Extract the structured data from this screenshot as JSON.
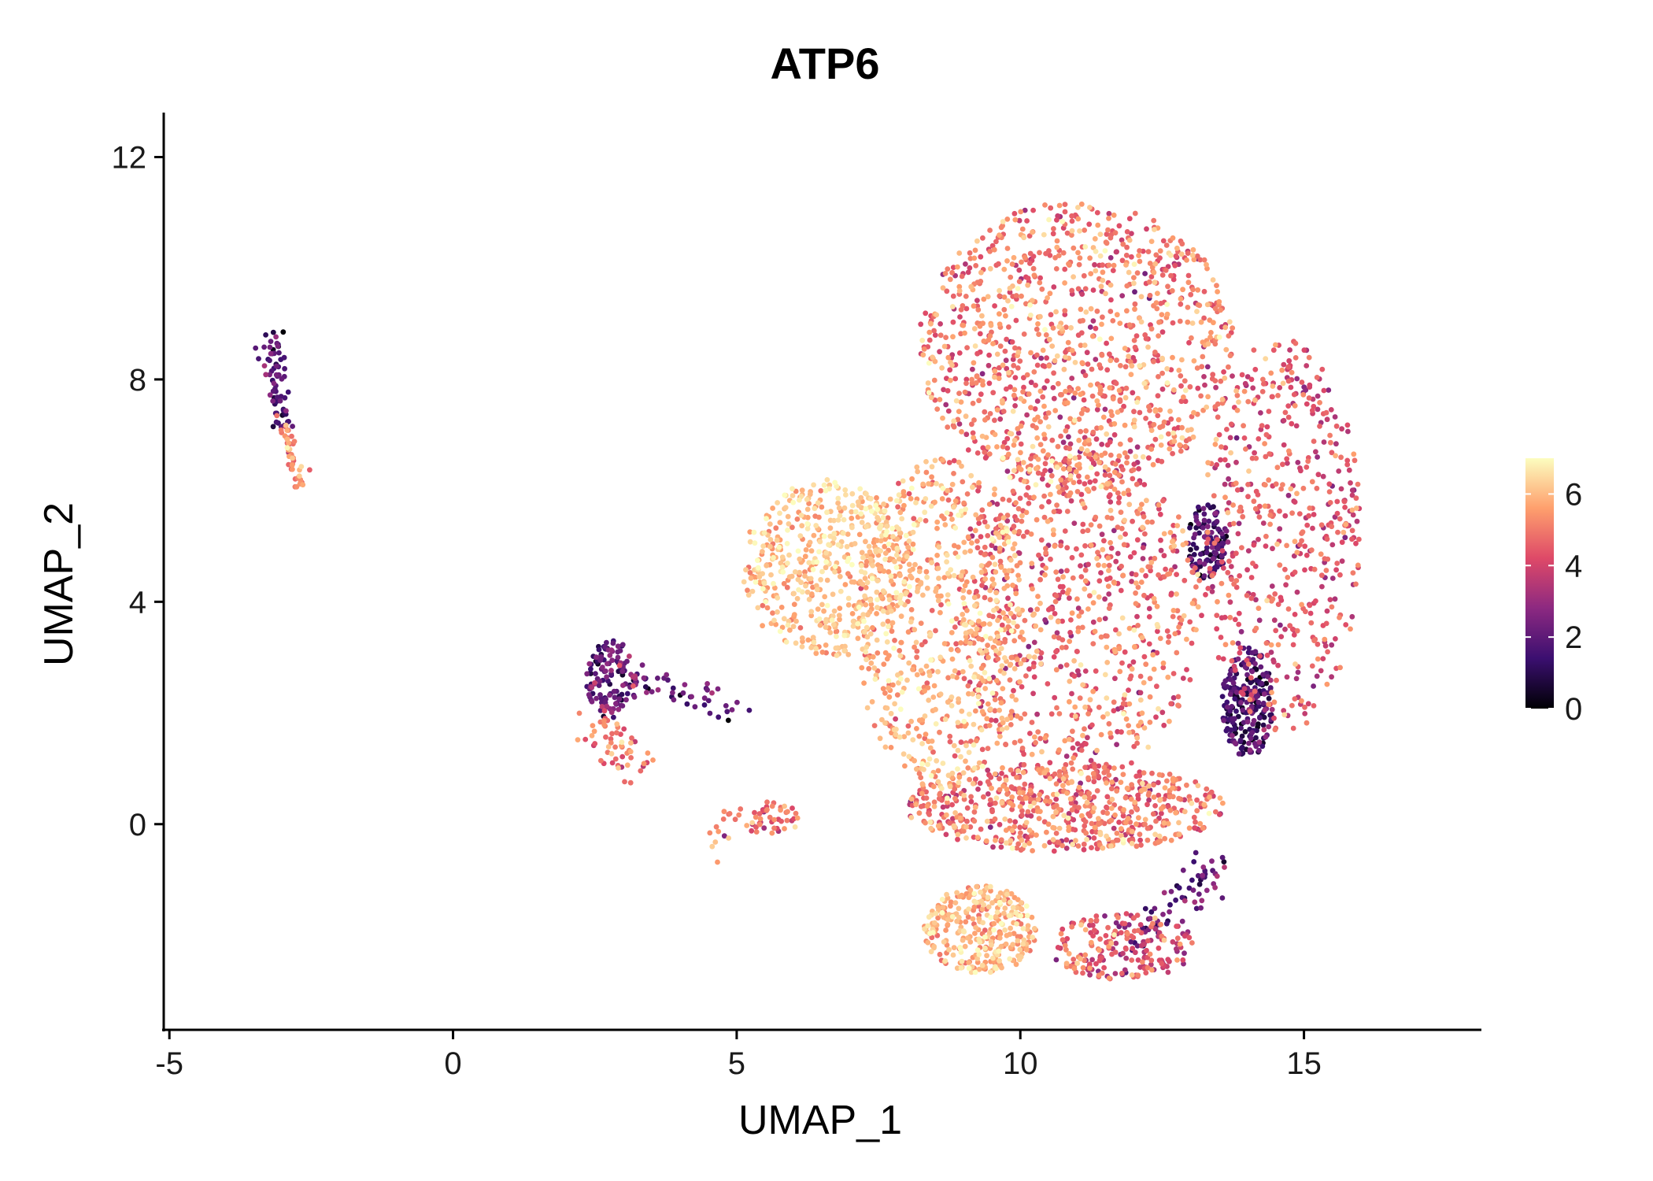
{
  "chart_data": {
    "type": "scatter",
    "title": "ATP6",
    "xlabel": "UMAP_1",
    "ylabel": "UMAP_2",
    "xlim": [
      -5.1,
      18.1
    ],
    "ylim": [
      -3.7,
      12.8
    ],
    "x_ticks": [
      -5,
      0,
      5,
      10,
      15
    ],
    "x_tick_labels": [
      "-5",
      "0",
      "5",
      "10",
      "15"
    ],
    "y_ticks": [
      0,
      4,
      8,
      12
    ],
    "y_tick_labels": [
      "0",
      "4",
      "8",
      "12"
    ],
    "grid": false,
    "legend": {
      "position": "right",
      "type": "colorbar",
      "range": [
        0,
        7
      ],
      "ticks": [
        0,
        2,
        4,
        6
      ],
      "tick_labels": [
        "0",
        "2",
        "4",
        "6"
      ]
    },
    "colormap": [
      "#000004",
      "#3b0f70",
      "#8c2981",
      "#de4968",
      "#fe9f6d",
      "#fcfdbf"
    ],
    "clusters": [
      {
        "name": "far-left strand upper",
        "shape": "line",
        "from": [
          -3.2,
          8.8
        ],
        "to": [
          -3.0,
          7.2
        ],
        "spread": 0.09,
        "n": 70,
        "value_mean": 1.8,
        "value_sd": 0.7
      },
      {
        "name": "far-left strand lower",
        "shape": "line",
        "from": [
          -3.0,
          7.2
        ],
        "to": [
          -2.7,
          6.1
        ],
        "spread": 0.07,
        "n": 45,
        "value_mean": 5.3,
        "value_sd": 0.7
      },
      {
        "name": "left island dark",
        "shape": "blob",
        "center": [
          2.8,
          2.6
        ],
        "radius": [
          0.45,
          0.7
        ],
        "n": 130,
        "value_mean": 2.0,
        "value_sd": 0.8
      },
      {
        "name": "left island tail",
        "shape": "line",
        "from": [
          2.5,
          1.8
        ],
        "to": [
          3.3,
          1.0
        ],
        "spread": 0.2,
        "n": 55,
        "value_mean": 5.0,
        "value_sd": 0.8
      },
      {
        "name": "left island strand",
        "shape": "line",
        "from": [
          3.2,
          2.6
        ],
        "to": [
          5.3,
          2.0
        ],
        "spread": 0.16,
        "n": 45,
        "value_mean": 2.2,
        "value_sd": 0.8
      },
      {
        "name": "lower small group",
        "shape": "blob",
        "center": [
          5.6,
          0.1
        ],
        "radius": [
          0.5,
          0.3
        ],
        "n": 45,
        "value_mean": 4.8,
        "value_sd": 0.8
      },
      {
        "name": "lower small tail",
        "shape": "line",
        "from": [
          4.6,
          -0.5
        ],
        "to": [
          5.2,
          0.4
        ],
        "spread": 0.12,
        "n": 15,
        "value_mean": 5.2,
        "value_sd": 0.8
      },
      {
        "name": "main cloud left lobe",
        "shape": "blob",
        "center": [
          6.6,
          4.6
        ],
        "radius": [
          1.5,
          1.6
        ],
        "n": 520,
        "value_mean": 6.1,
        "value_sd": 0.55
      },
      {
        "name": "main cloud center left",
        "shape": "blob",
        "center": [
          8.6,
          3.6
        ],
        "radius": [
          1.5,
          3.0
        ],
        "n": 650,
        "value_mean": 5.8,
        "value_sd": 0.7
      },
      {
        "name": "main cloud upper",
        "shape": "blob",
        "center": [
          11.0,
          8.6
        ],
        "radius": [
          2.8,
          2.6
        ],
        "n": 1100,
        "value_mean": 5.0,
        "value_sd": 0.85
      },
      {
        "name": "main cloud center",
        "shape": "blob",
        "center": [
          11.0,
          3.8
        ],
        "radius": [
          2.2,
          3.0
        ],
        "n": 800,
        "value_mean": 4.8,
        "value_sd": 0.85
      },
      {
        "name": "main cloud right",
        "shape": "blob",
        "center": [
          14.6,
          5.2
        ],
        "radius": [
          1.4,
          3.6
        ],
        "n": 520,
        "value_mean": 4.4,
        "value_sd": 0.8
      },
      {
        "name": "main cloud bottom",
        "shape": "blob",
        "center": [
          10.8,
          0.3
        ],
        "radius": [
          2.8,
          0.8
        ],
        "n": 650,
        "value_mean": 4.9,
        "value_sd": 0.8
      },
      {
        "name": "dark band upper",
        "shape": "blob",
        "center": [
          13.3,
          5.1
        ],
        "radius": [
          0.35,
          0.7
        ],
        "n": 110,
        "value_mean": 1.6,
        "value_sd": 0.7
      },
      {
        "name": "dark band lower",
        "shape": "blob",
        "center": [
          14.0,
          2.2
        ],
        "radius": [
          0.45,
          1.0
        ],
        "n": 220,
        "value_mean": 1.5,
        "value_sd": 0.7
      },
      {
        "name": "bottom lobe",
        "shape": "blob",
        "center": [
          9.3,
          -1.9
        ],
        "radius": [
          1.0,
          0.8
        ],
        "n": 320,
        "value_mean": 5.9,
        "value_sd": 0.6
      },
      {
        "name": "bottom right lobe",
        "shape": "blob",
        "center": [
          11.8,
          -2.2
        ],
        "radius": [
          1.3,
          0.6
        ],
        "n": 200,
        "value_mean": 4.2,
        "value_sd": 0.9
      },
      {
        "name": "bottom right dark strand",
        "shape": "line",
        "from": [
          12.0,
          -2.2
        ],
        "to": [
          13.6,
          -0.6
        ],
        "spread": 0.18,
        "n": 70,
        "value_mean": 2.0,
        "value_sd": 0.8
      }
    ]
  }
}
